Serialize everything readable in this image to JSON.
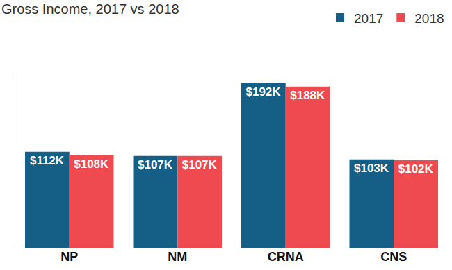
{
  "chart_data": {
    "type": "bar",
    "title": "Gross Income, 2017 vs 2018",
    "categories": [
      "NP",
      "NM",
      "CRNA",
      "CNS"
    ],
    "series": [
      {
        "name": "2017",
        "color": "#155e86",
        "values": [
          112,
          107,
          192,
          103
        ],
        "value_labels": [
          "$112K",
          "$107K",
          "$192K",
          "$103K"
        ]
      },
      {
        "name": "2018",
        "color": "#ef4a4f",
        "values": [
          108,
          107,
          188,
          102
        ],
        "value_labels": [
          "$108K",
          "$107K",
          "$188K",
          "$102K"
        ]
      }
    ],
    "ylim": [
      0,
      200
    ],
    "grid": false,
    "legend": "top right",
    "data_labels": true,
    "tick_labels": "x"
  }
}
